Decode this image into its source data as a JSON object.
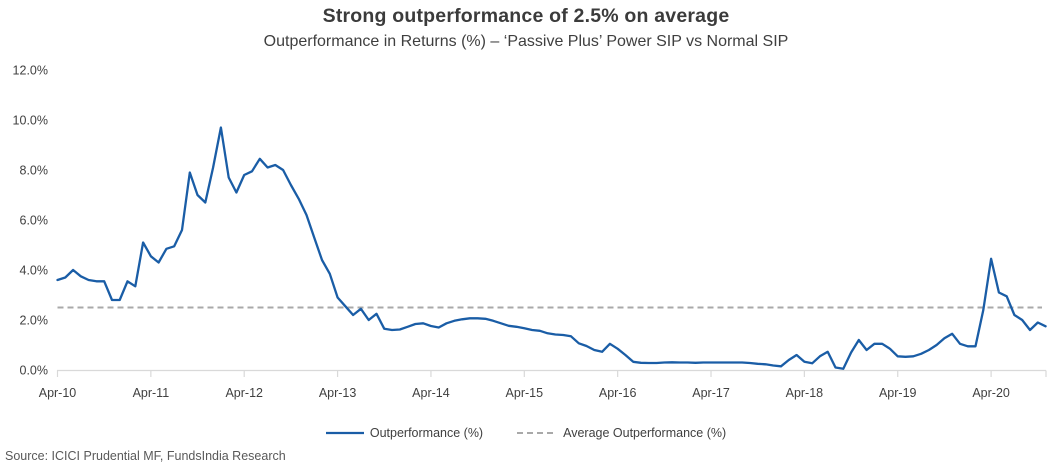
{
  "header": {
    "title": "Strong outperformance of 2.5% on average",
    "subtitle": "Outperformance in Returns (%) – ‘Passive Plus’ Power SIP vs Normal SIP"
  },
  "legend": {
    "series_label": "Outperformance (%)",
    "average_label": "Average Outperformance (%)"
  },
  "footer": {
    "source": "Source: ICICI Prudential MF, FundsIndia Research"
  },
  "colors": {
    "line": "#1a5da6",
    "average_line": "#a9a9a9",
    "axis": "#d9d9d9",
    "tick_text": "#404040",
    "title_text": "#3b3b3b",
    "source_text": "#595959"
  },
  "chart_data": {
    "type": "line",
    "title": "Strong outperformance of 2.5% on average",
    "subtitle": "Outperformance in Returns (%) – ‘Passive Plus’ Power SIP vs Normal SIP",
    "xlabel": "",
    "ylabel": "Outperformance in Returns (%)",
    "x_frequency": "monthly",
    "x_start": "Apr-10",
    "x_end": "Nov-20",
    "x_tick_labels": [
      "Apr-10",
      "Apr-11",
      "Apr-12",
      "Apr-13",
      "Apr-14",
      "Apr-15",
      "Apr-16",
      "Apr-17",
      "Apr-18",
      "Apr-19",
      "Apr-20"
    ],
    "months_per_tick": 12,
    "ylim": [
      0,
      12
    ],
    "y_ticks": [
      {
        "value": 0,
        "label": "0.0%"
      },
      {
        "value": 2,
        "label": "2.0%"
      },
      {
        "value": 4,
        "label": "4.0%"
      },
      {
        "value": 6,
        "label": "6.0%"
      },
      {
        "value": 8,
        "label": "8.0%"
      },
      {
        "value": 10,
        "label": "10.0%"
      },
      {
        "value": 12,
        "label": "12.0%"
      }
    ],
    "grid": false,
    "legend_position": "bottom",
    "average": {
      "value": 2.5,
      "label": "Average Outperformance (%)",
      "style": "dashed"
    },
    "series": [
      {
        "name": "Outperformance (%)",
        "values": [
          3.6,
          3.7,
          4.0,
          3.75,
          3.6,
          3.55,
          3.55,
          2.8,
          2.8,
          3.55,
          3.35,
          5.1,
          4.55,
          4.3,
          4.85,
          4.95,
          5.6,
          7.9,
          7.0,
          6.7,
          8.1,
          9.7,
          7.7,
          7.1,
          7.8,
          7.95,
          8.45,
          8.1,
          8.2,
          8.0,
          7.4,
          6.85,
          6.2,
          5.3,
          4.4,
          3.85,
          2.9,
          2.55,
          2.2,
          2.45,
          2.0,
          2.25,
          1.65,
          1.6,
          1.62,
          1.73,
          1.84,
          1.87,
          1.76,
          1.7,
          1.87,
          1.97,
          2.03,
          2.07,
          2.07,
          2.05,
          1.97,
          1.87,
          1.77,
          1.73,
          1.67,
          1.6,
          1.57,
          1.47,
          1.42,
          1.4,
          1.35,
          1.07,
          0.96,
          0.8,
          0.73,
          1.05,
          0.85,
          0.6,
          0.33,
          0.29,
          0.28,
          0.28,
          0.3,
          0.31,
          0.3,
          0.3,
          0.29,
          0.3,
          0.3,
          0.3,
          0.3,
          0.3,
          0.3,
          0.28,
          0.25,
          0.23,
          0.18,
          0.15,
          0.4,
          0.6,
          0.33,
          0.27,
          0.55,
          0.73,
          0.1,
          0.05,
          0.7,
          1.2,
          0.8,
          1.05,
          1.05,
          0.85,
          0.55,
          0.53,
          0.55,
          0.65,
          0.8,
          1.0,
          1.27,
          1.45,
          1.05,
          0.95,
          0.95,
          2.4,
          4.45,
          3.1,
          2.95,
          2.2,
          2.0,
          1.6,
          1.9,
          1.75
        ]
      }
    ]
  }
}
